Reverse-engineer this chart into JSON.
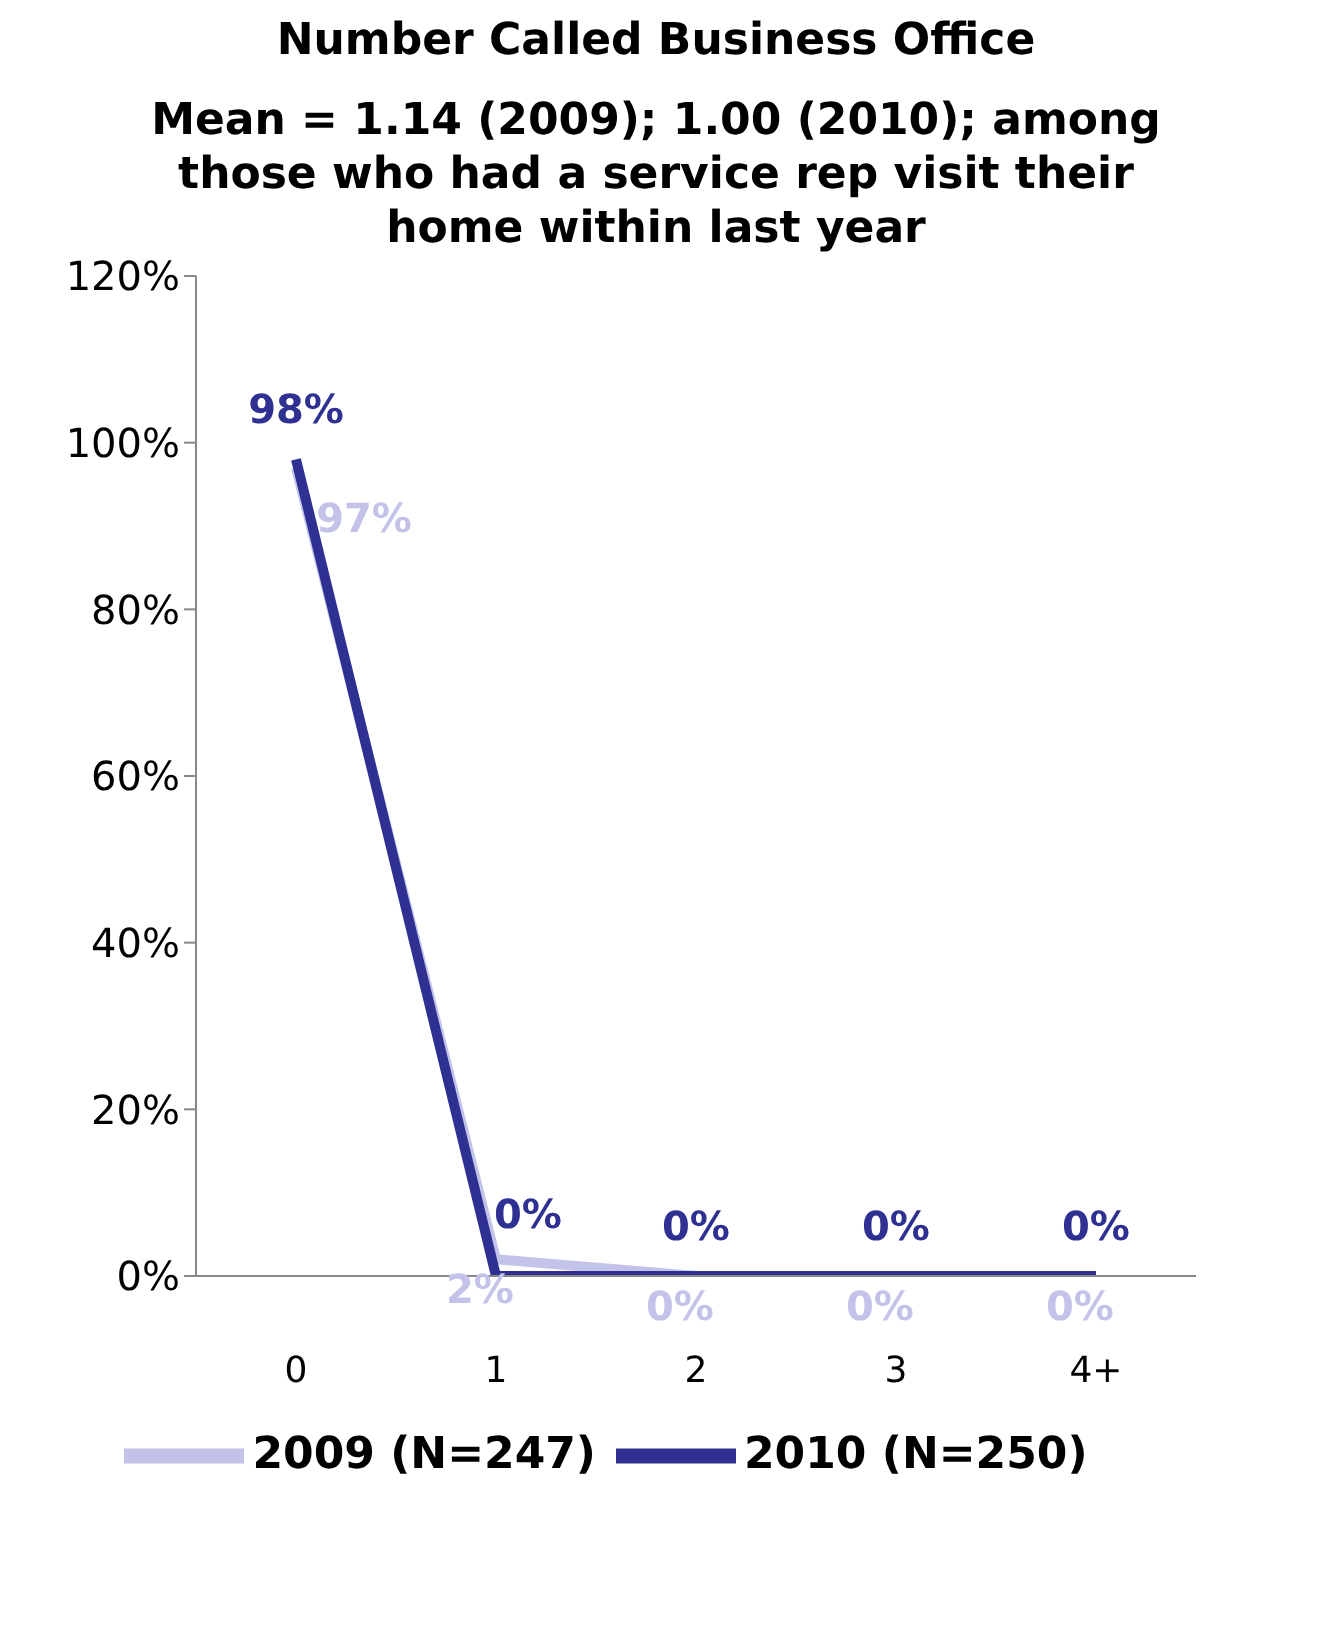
{
  "chart_data": {
    "type": "line",
    "title": "Number Called Business Office",
    "subtitle": "Mean = 1.14 (2009); 1.00 (2010); among those who had a service rep visit their home within last year",
    "categories": [
      "0",
      "1",
      "2",
      "3",
      "4+"
    ],
    "series": [
      {
        "name": "2009 (N=247)",
        "color": "#c3c3ea",
        "values": [
          97,
          2,
          0,
          0,
          0
        ],
        "value_labels": [
          "97%",
          "2%",
          "0%",
          "0%",
          "0%"
        ]
      },
      {
        "name": "2010 (N=250)",
        "color": "#2e3192",
        "values": [
          98,
          0,
          0,
          0,
          0
        ],
        "value_labels": [
          "98%",
          "0%",
          "0%",
          "0%",
          "0%"
        ]
      }
    ],
    "ylim": [
      0,
      120
    ],
    "yticks": [
      {
        "value": 0,
        "label": "0%"
      },
      {
        "value": 20,
        "label": "20%"
      },
      {
        "value": 40,
        "label": "40%"
      },
      {
        "value": 60,
        "label": "60%"
      },
      {
        "value": 80,
        "label": "80%"
      },
      {
        "value": 100,
        "label": "100%"
      },
      {
        "value": 120,
        "label": "120%"
      }
    ],
    "grid": false,
    "legend": "bottom",
    "marker": "none",
    "line_style": "solid"
  }
}
